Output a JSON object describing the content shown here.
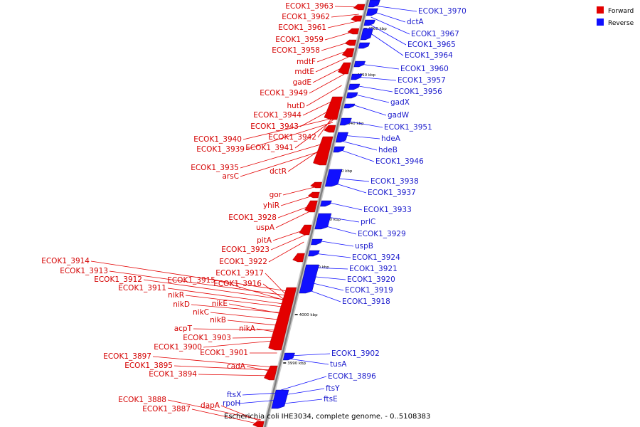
{
  "caption": "Escherichia coli IHE3034, complete genome. - 0..5108383",
  "legend": [
    {
      "label": "Forward",
      "color": "#e30000"
    },
    {
      "label": "Reverse",
      "color": "#1010ff"
    }
  ],
  "colors": {
    "forward": "#e30000",
    "reverse": "#1010ff",
    "backbone": "#808080"
  },
  "ticks": [
    "3990 kbp",
    "4000 kbp",
    "4010 kbp",
    "4020 kbp",
    "4030 kbp",
    "4040 kbp",
    "4050 kbp",
    "4060 kbp"
  ],
  "forward_labels": [
    "ECOK1_3963",
    "ECOK1_3962",
    "ECOK1_3961",
    "ECOK1_3959",
    "ECOK1_3958",
    "mdtF",
    "mdtE",
    "gadE",
    "ECOK1_3949",
    "hutD",
    "ECOK1_3944",
    "ECOK1_3943",
    "ECOK1_3942",
    "ECOK1_3940",
    "ECOK1_3941",
    "ECOK1_3939",
    "ECOK1_3935",
    "dctR",
    "arsC",
    "gor",
    "yhiR",
    "ECOK1_3928",
    "uspA",
    "pitA",
    "ECOK1_3923",
    "ECOK1_3922",
    "ECOK1_3914",
    "ECOK1_3913",
    "ECOK1_3917",
    "ECOK1_3912",
    "ECOK1_3915",
    "ECOK1_3916",
    "ECOK1_3911",
    "nikR",
    "nikD",
    "nikE",
    "nikC",
    "nikB",
    "acpT",
    "nikA",
    "ECOK1_3903",
    "ECOK1_3900",
    "ECOK1_3901",
    "ECOK1_3897",
    "ECOK1_3895",
    "cadA",
    "ECOK1_3894",
    "ECOK1_3888",
    "dapA",
    "ECOK1_3887"
  ],
  "reverse_labels": [
    "ECOK1_3970",
    "dctA",
    "ECOK1_3967",
    "ECOK1_3965",
    "ECOK1_3964",
    "ECOK1_3960",
    "ECOK1_3957",
    "ECOK1_3956",
    "gadX",
    "gadW",
    "ECOK1_3951",
    "hdeA",
    "hdeB",
    "ECOK1_3946",
    "ECOK1_3938",
    "ECOK1_3937",
    "ECOK1_3933",
    "prlC",
    "ECOK1_3929",
    "uspB",
    "ECOK1_3924",
    "ECOK1_3921",
    "ECOK1_3920",
    "ECOK1_3919",
    "ECOK1_3918",
    "ECOK1_3902",
    "tusA",
    "ECOK1_3896",
    "ftsY",
    "ftsX",
    "rpoH",
    "ftsE"
  ]
}
